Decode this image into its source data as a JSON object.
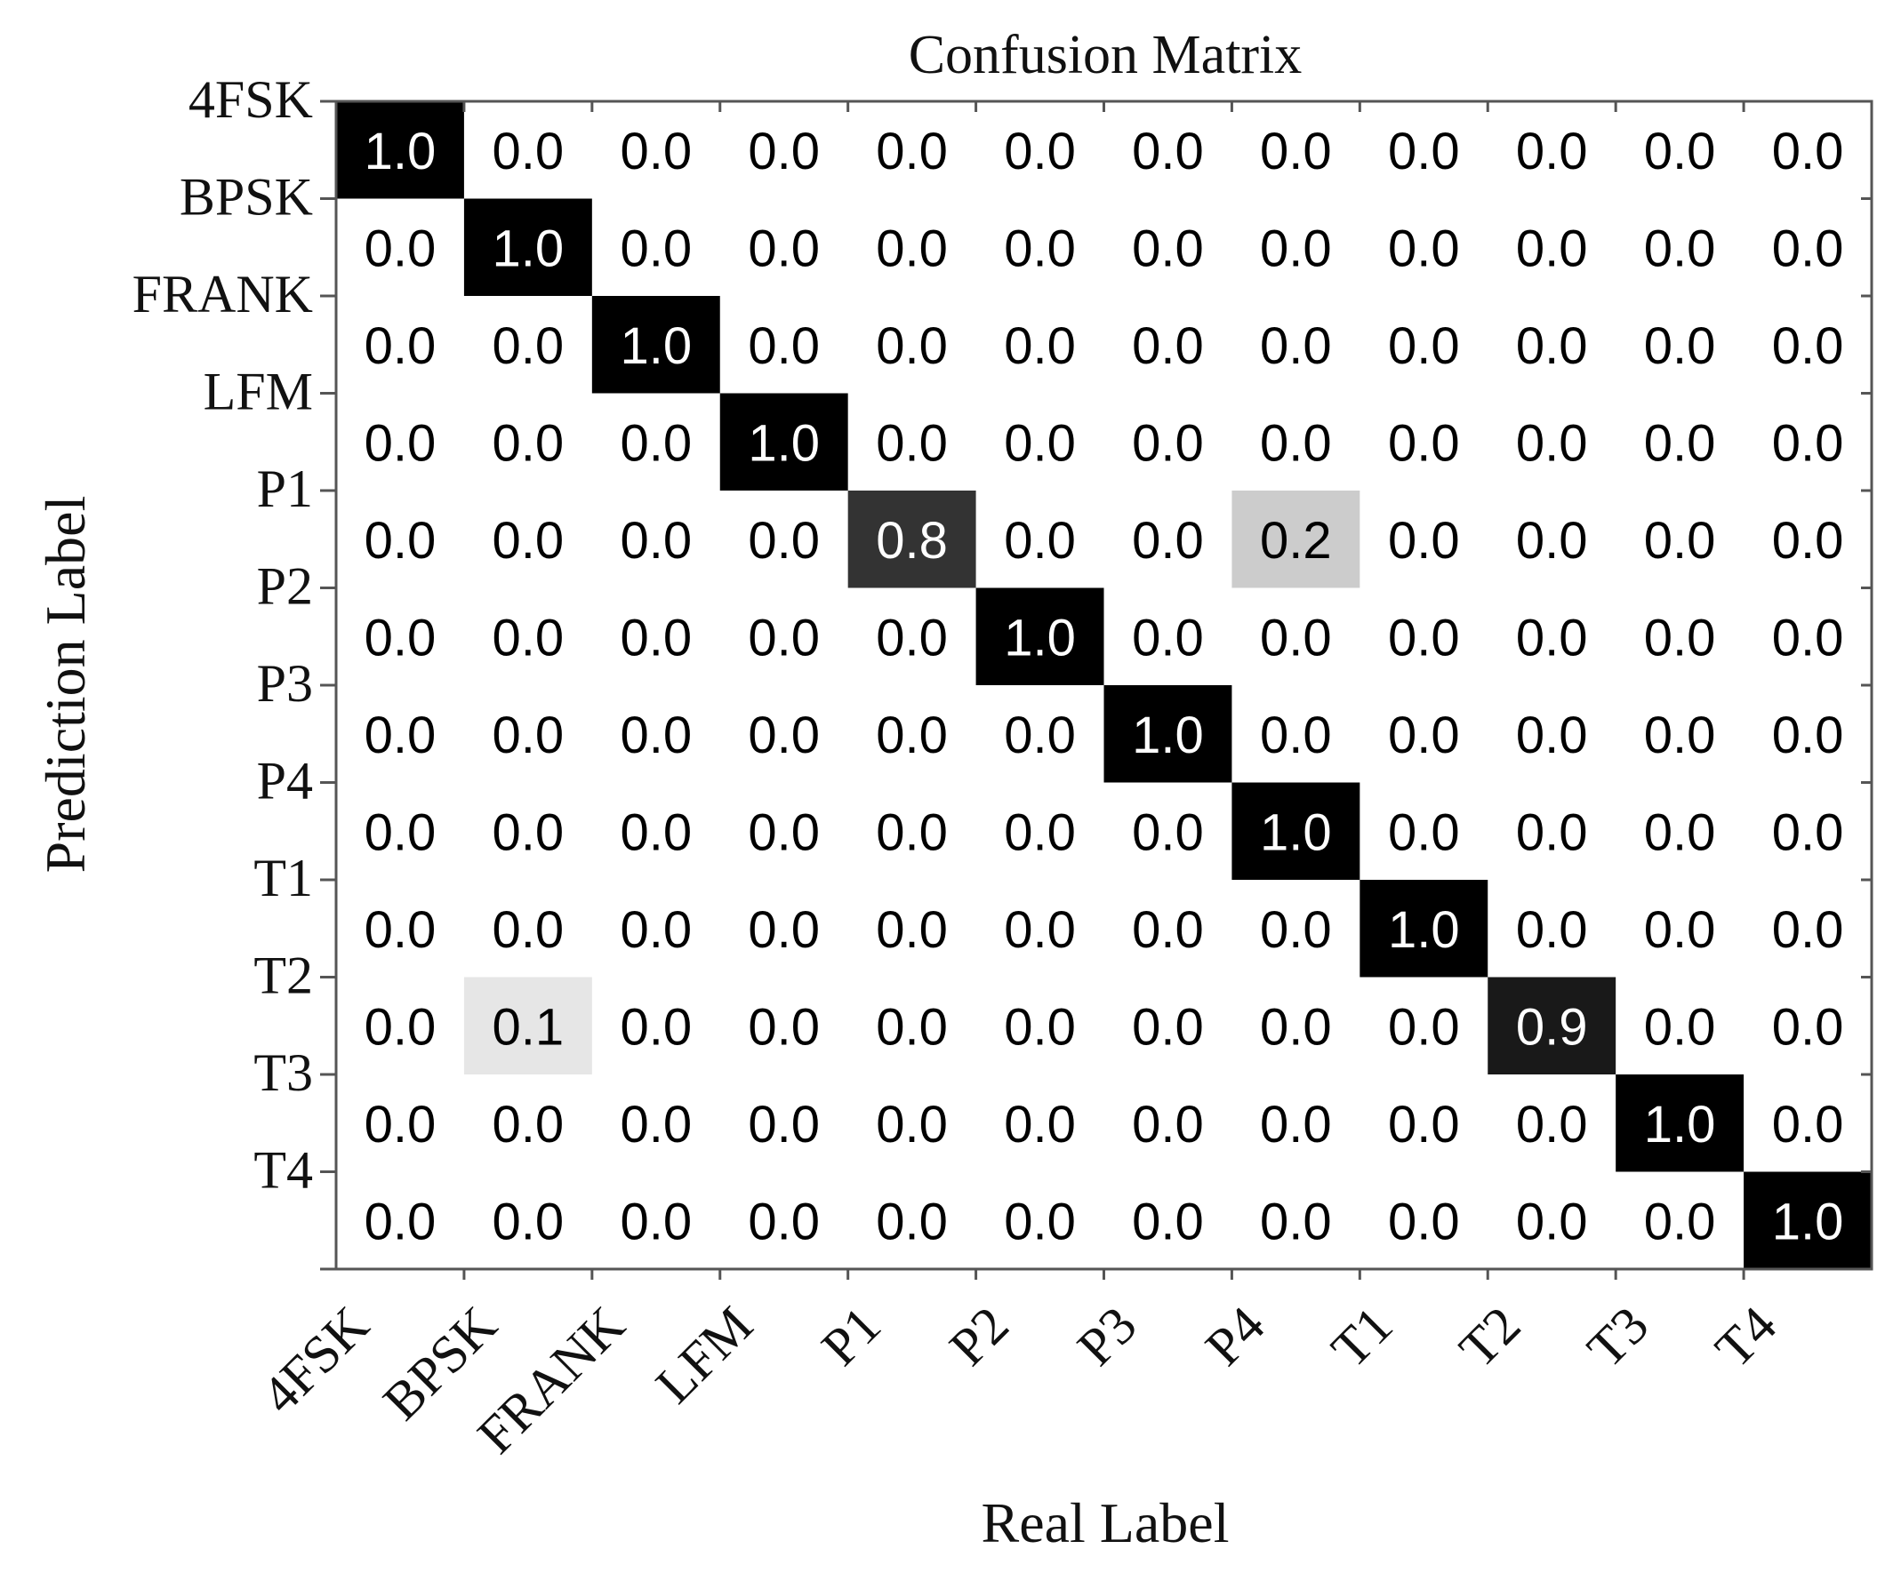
{
  "chart_data": {
    "type": "heatmap",
    "title": "Confusion Matrix",
    "xlabel": "Real Label",
    "ylabel": "Prediction Label",
    "x_categories": [
      "4FSK",
      "BPSK",
      "FRANK",
      "LFM",
      "P1",
      "P2",
      "P3",
      "P4",
      "T1",
      "T2",
      "T3",
      "T4"
    ],
    "y_categories": [
      "4FSK",
      "BPSK",
      "FRANK",
      "LFM",
      "P1",
      "P2",
      "P3",
      "P4",
      "T1",
      "T2",
      "T3",
      "T4"
    ],
    "values": [
      [
        1.0,
        0.0,
        0.0,
        0.0,
        0.0,
        0.0,
        0.0,
        0.0,
        0.0,
        0.0,
        0.0,
        0.0
      ],
      [
        0.0,
        1.0,
        0.0,
        0.0,
        0.0,
        0.0,
        0.0,
        0.0,
        0.0,
        0.0,
        0.0,
        0.0
      ],
      [
        0.0,
        0.0,
        1.0,
        0.0,
        0.0,
        0.0,
        0.0,
        0.0,
        0.0,
        0.0,
        0.0,
        0.0
      ],
      [
        0.0,
        0.0,
        0.0,
        1.0,
        0.0,
        0.0,
        0.0,
        0.0,
        0.0,
        0.0,
        0.0,
        0.0
      ],
      [
        0.0,
        0.0,
        0.0,
        0.0,
        0.8,
        0.0,
        0.0,
        0.2,
        0.0,
        0.0,
        0.0,
        0.0
      ],
      [
        0.0,
        0.0,
        0.0,
        0.0,
        0.0,
        1.0,
        0.0,
        0.0,
        0.0,
        0.0,
        0.0,
        0.0
      ],
      [
        0.0,
        0.0,
        0.0,
        0.0,
        0.0,
        0.0,
        1.0,
        0.0,
        0.0,
        0.0,
        0.0,
        0.0
      ],
      [
        0.0,
        0.0,
        0.0,
        0.0,
        0.0,
        0.0,
        0.0,
        1.0,
        0.0,
        0.0,
        0.0,
        0.0
      ],
      [
        0.0,
        0.0,
        0.0,
        0.0,
        0.0,
        0.0,
        0.0,
        0.0,
        1.0,
        0.0,
        0.0,
        0.0
      ],
      [
        0.0,
        0.1,
        0.0,
        0.0,
        0.0,
        0.0,
        0.0,
        0.0,
        0.0,
        0.9,
        0.0,
        0.0
      ],
      [
        0.0,
        0.0,
        0.0,
        0.0,
        0.0,
        0.0,
        0.0,
        0.0,
        0.0,
        0.0,
        1.0,
        0.0
      ],
      [
        0.0,
        0.0,
        0.0,
        0.0,
        0.0,
        0.0,
        0.0,
        0.0,
        0.0,
        0.0,
        0.0,
        1.0
      ]
    ],
    "colormap": "gray_r",
    "value_range": [
      0,
      1
    ],
    "grid": false,
    "colors": {
      "high": "#000000",
      "low": "#ffffff",
      "axis": "#555555"
    }
  }
}
